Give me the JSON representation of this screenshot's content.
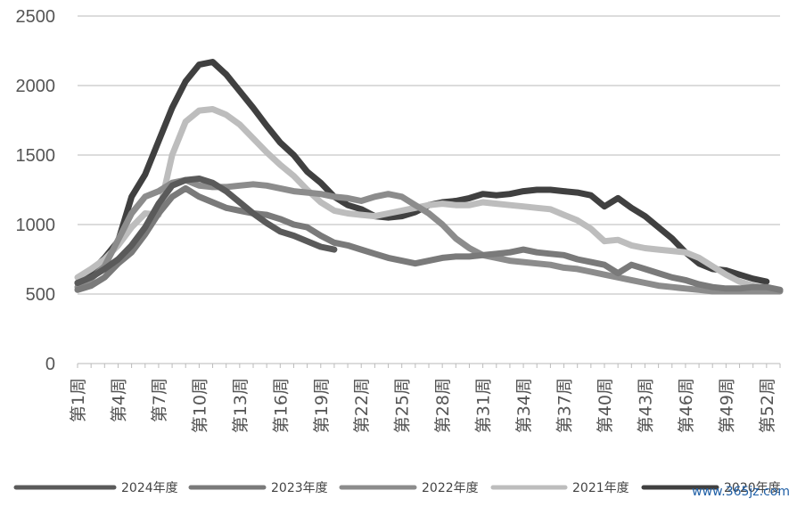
{
  "chart_data": {
    "type": "line",
    "title": "",
    "xlabel": "",
    "ylabel": "",
    "ylim": [
      0,
      2500
    ],
    "yticks": [
      0,
      500,
      1000,
      1500,
      2000,
      2500
    ],
    "grid": true,
    "legend_position": "bottom",
    "categories": [
      "第1周",
      "第4周",
      "第7周",
      "第10周",
      "第13周",
      "第16周",
      "第19周",
      "第22周",
      "第25周",
      "第28周",
      "第31周",
      "第34周",
      "第37周",
      "第40周",
      "第43周",
      "第46周",
      "第49周",
      "第52周"
    ],
    "series": [
      {
        "name": "2024年度",
        "color": "#5a5a5a",
        "x": [
          1,
          2,
          3,
          4,
          5,
          6,
          7,
          8,
          9,
          10,
          11,
          12,
          13,
          14,
          15,
          16,
          17,
          18,
          19,
          20
        ],
        "values": [
          580,
          620,
          680,
          750,
          850,
          980,
          1150,
          1280,
          1320,
          1330,
          1300,
          1240,
          1160,
          1080,
          1010,
          950,
          920,
          880,
          840,
          820
        ]
      },
      {
        "name": "2023年度",
        "color": "#7a7a7a",
        "x": [
          1,
          2,
          3,
          4,
          5,
          6,
          7,
          8,
          9,
          10,
          11,
          12,
          13,
          14,
          15,
          16,
          17,
          18,
          19,
          20,
          21,
          22,
          23,
          24,
          25,
          26,
          27,
          28,
          29,
          30,
          31,
          32,
          33,
          34,
          35,
          36,
          37,
          38,
          39,
          40,
          41,
          42,
          43,
          44,
          45,
          46,
          47,
          48,
          49,
          50,
          51,
          52,
          53
        ],
        "values": [
          530,
          560,
          620,
          720,
          800,
          930,
          1080,
          1200,
          1260,
          1200,
          1160,
          1120,
          1100,
          1080,
          1070,
          1040,
          1000,
          980,
          920,
          870,
          850,
          820,
          790,
          760,
          740,
          720,
          740,
          760,
          770,
          770,
          780,
          790,
          800,
          820,
          800,
          790,
          780,
          750,
          730,
          710,
          650,
          710,
          680,
          650,
          620,
          600,
          570,
          550,
          540,
          540,
          550,
          550,
          530
        ]
      },
      {
        "name": "2022年度",
        "color": "#8c8c8c",
        "x": [
          1,
          2,
          3,
          4,
          5,
          6,
          7,
          8,
          9,
          10,
          11,
          12,
          13,
          14,
          15,
          16,
          17,
          18,
          19,
          20,
          21,
          22,
          23,
          24,
          25,
          26,
          27,
          28,
          29,
          30,
          31,
          32,
          33,
          34,
          35,
          36,
          37,
          38,
          39,
          40,
          41,
          42,
          43,
          44,
          45,
          46,
          47,
          48,
          49,
          50,
          51,
          52,
          53
        ],
        "values": [
          550,
          610,
          700,
          890,
          1080,
          1200,
          1240,
          1300,
          1320,
          1280,
          1270,
          1270,
          1280,
          1290,
          1280,
          1260,
          1240,
          1230,
          1220,
          1200,
          1190,
          1170,
          1200,
          1220,
          1200,
          1140,
          1080,
          1000,
          900,
          830,
          780,
          760,
          740,
          730,
          720,
          710,
          690,
          680,
          660,
          640,
          620,
          600,
          580,
          560,
          550,
          540,
          530,
          520,
          520,
          520,
          520,
          520,
          520
        ]
      },
      {
        "name": "2021年度",
        "color": "#bdbdbd",
        "x": [
          1,
          2,
          3,
          4,
          5,
          6,
          7,
          8,
          9,
          10,
          11,
          12,
          13,
          14,
          15,
          16,
          17,
          18,
          19,
          20,
          21,
          22,
          23,
          24,
          25,
          26,
          27,
          28,
          29,
          30,
          31,
          32,
          33,
          34,
          35,
          36,
          37,
          38,
          39,
          40,
          41,
          42,
          43,
          44,
          45,
          46,
          47,
          48,
          49,
          50,
          51,
          52,
          53
        ],
        "values": [
          620,
          680,
          750,
          850,
          980,
          1080,
          1070,
          1500,
          1740,
          1820,
          1830,
          1790,
          1720,
          1620,
          1520,
          1430,
          1350,
          1250,
          1160,
          1100,
          1080,
          1070,
          1060,
          1080,
          1100,
          1120,
          1140,
          1150,
          1140,
          1140,
          1160,
          1150,
          1140,
          1130,
          1120,
          1110,
          1070,
          1030,
          970,
          880,
          890,
          850,
          830,
          820,
          810,
          800,
          760,
          700,
          640,
          590,
          560,
          540,
          520
        ]
      },
      {
        "name": "2020年度",
        "color": "#404040",
        "x": [
          1,
          2,
          3,
          4,
          5,
          6,
          7,
          8,
          9,
          10,
          11,
          12,
          13,
          14,
          15,
          16,
          17,
          18,
          19,
          20,
          21,
          22,
          23,
          24,
          25,
          26,
          27,
          28,
          29,
          30,
          31,
          32,
          33,
          34,
          35,
          36,
          37,
          38,
          39,
          40,
          41,
          42,
          43,
          44,
          45,
          46,
          47,
          48,
          49,
          50,
          51,
          52
        ],
        "values": [
          580,
          660,
          760,
          880,
          1200,
          1360,
          1600,
          1840,
          2030,
          2150,
          2170,
          2080,
          1960,
          1840,
          1710,
          1590,
          1500,
          1380,
          1300,
          1200,
          1140,
          1110,
          1060,
          1050,
          1060,
          1090,
          1140,
          1160,
          1170,
          1190,
          1220,
          1210,
          1220,
          1240,
          1250,
          1250,
          1240,
          1230,
          1210,
          1130,
          1190,
          1120,
          1060,
          980,
          900,
          800,
          720,
          680,
          670,
          640,
          610,
          590
        ]
      }
    ]
  },
  "watermark": "www.365jz.com"
}
